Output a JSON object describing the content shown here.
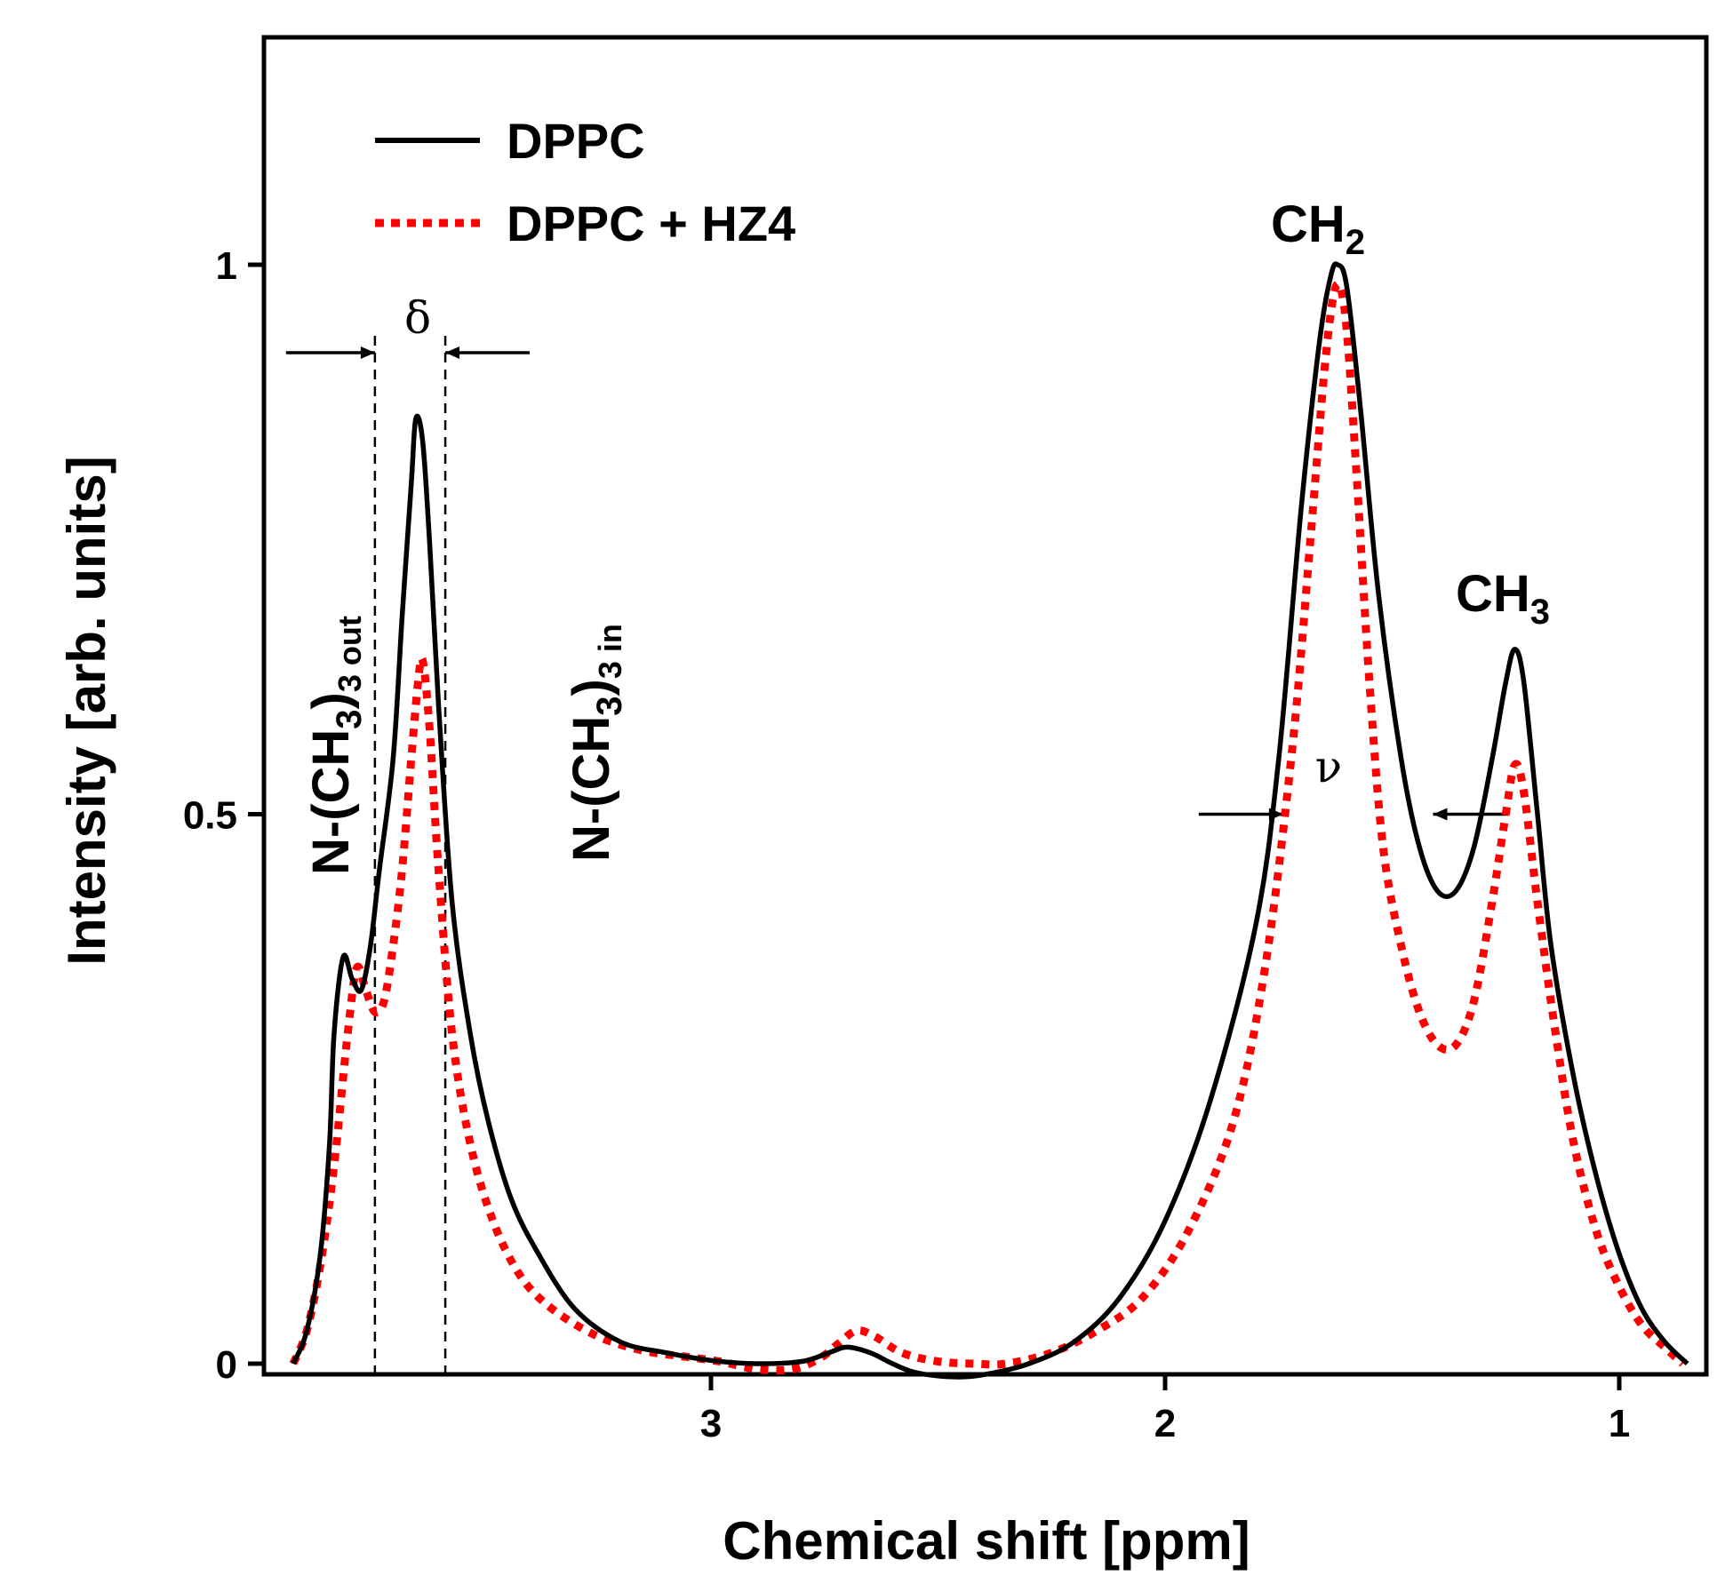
{
  "chart_data": {
    "type": "line",
    "xlabel": "Chemical shift [ppm]",
    "ylabel": "Intensity [arb. units]",
    "xlim": [
      4.0,
      0.8
    ],
    "ylim": [
      -0.03,
      1.2
    ],
    "x_ticks": [
      3,
      2,
      1
    ],
    "x_tick_labels": [
      "3",
      "2",
      "1"
    ],
    "y_ticks": [
      0,
      0.5,
      1
    ],
    "y_tick_labels": [
      "0",
      "0.5",
      "1"
    ],
    "legend_position": "top-left",
    "series": [
      {
        "name": "DPPC",
        "style": "solid",
        "color": "#000000",
        "points": [
          [
            3.92,
            0.0
          ],
          [
            3.89,
            0.03
          ],
          [
            3.86,
            0.1
          ],
          [
            3.84,
            0.2
          ],
          [
            3.83,
            0.3
          ],
          [
            3.81,
            0.37
          ],
          [
            3.79,
            0.35
          ],
          [
            3.77,
            0.34
          ],
          [
            3.75,
            0.38
          ],
          [
            3.73,
            0.45
          ],
          [
            3.7,
            0.55
          ],
          [
            3.68,
            0.68
          ],
          [
            3.66,
            0.8
          ],
          [
            3.65,
            0.86
          ],
          [
            3.635,
            0.84
          ],
          [
            3.62,
            0.75
          ],
          [
            3.6,
            0.6
          ],
          [
            3.57,
            0.42
          ],
          [
            3.53,
            0.3
          ],
          [
            3.49,
            0.22
          ],
          [
            3.44,
            0.15
          ],
          [
            3.38,
            0.1
          ],
          [
            3.3,
            0.05
          ],
          [
            3.2,
            0.02
          ],
          [
            3.1,
            0.01
          ],
          [
            3.0,
            0.003
          ],
          [
            2.9,
            0.0
          ],
          [
            2.8,
            0.002
          ],
          [
            2.74,
            0.01
          ],
          [
            2.7,
            0.015
          ],
          [
            2.65,
            0.01
          ],
          [
            2.6,
            0.0
          ],
          [
            2.55,
            -0.008
          ],
          [
            2.47,
            -0.012
          ],
          [
            2.4,
            -0.01
          ],
          [
            2.3,
            0.0
          ],
          [
            2.2,
            0.02
          ],
          [
            2.1,
            0.06
          ],
          [
            2.0,
            0.13
          ],
          [
            1.9,
            0.24
          ],
          [
            1.8,
            0.4
          ],
          [
            1.75,
            0.55
          ],
          [
            1.7,
            0.78
          ],
          [
            1.66,
            0.93
          ],
          [
            1.635,
            0.99
          ],
          [
            1.62,
            1.0
          ],
          [
            1.6,
            0.98
          ],
          [
            1.57,
            0.87
          ],
          [
            1.53,
            0.7
          ],
          [
            1.48,
            0.55
          ],
          [
            1.44,
            0.47
          ],
          [
            1.4,
            0.43
          ],
          [
            1.36,
            0.43
          ],
          [
            1.32,
            0.47
          ],
          [
            1.28,
            0.55
          ],
          [
            1.25,
            0.62
          ],
          [
            1.23,
            0.65
          ],
          [
            1.21,
            0.62
          ],
          [
            1.18,
            0.5
          ],
          [
            1.15,
            0.38
          ],
          [
            1.1,
            0.26
          ],
          [
            1.05,
            0.17
          ],
          [
            1.0,
            0.1
          ],
          [
            0.95,
            0.05
          ],
          [
            0.9,
            0.02
          ],
          [
            0.85,
            0.0
          ]
        ]
      },
      {
        "name": "DPPC + HZ4",
        "style": "dotted",
        "color": "#ff0000",
        "points": [
          [
            3.92,
            0.0
          ],
          [
            3.89,
            0.03
          ],
          [
            3.86,
            0.09
          ],
          [
            3.83,
            0.18
          ],
          [
            3.8,
            0.3
          ],
          [
            3.78,
            0.36
          ],
          [
            3.76,
            0.34
          ],
          [
            3.74,
            0.32
          ],
          [
            3.72,
            0.33
          ],
          [
            3.7,
            0.38
          ],
          [
            3.68,
            0.45
          ],
          [
            3.66,
            0.55
          ],
          [
            3.645,
            0.62
          ],
          [
            3.635,
            0.64
          ],
          [
            3.62,
            0.58
          ],
          [
            3.6,
            0.45
          ],
          [
            3.57,
            0.3
          ],
          [
            3.53,
            0.2
          ],
          [
            3.48,
            0.13
          ],
          [
            3.42,
            0.08
          ],
          [
            3.35,
            0.05
          ],
          [
            3.25,
            0.025
          ],
          [
            3.15,
            0.012
          ],
          [
            3.05,
            0.006
          ],
          [
            2.98,
            0.002
          ],
          [
            2.9,
            -0.005
          ],
          [
            2.82,
            -0.005
          ],
          [
            2.76,
            0.005
          ],
          [
            2.72,
            0.018
          ],
          [
            2.68,
            0.03
          ],
          [
            2.64,
            0.025
          ],
          [
            2.58,
            0.01
          ],
          [
            2.5,
            0.002
          ],
          [
            2.42,
            0.0
          ],
          [
            2.35,
            0.0
          ],
          [
            2.25,
            0.01
          ],
          [
            2.15,
            0.03
          ],
          [
            2.05,
            0.06
          ],
          [
            1.95,
            0.12
          ],
          [
            1.85,
            0.22
          ],
          [
            1.78,
            0.36
          ],
          [
            1.72,
            0.56
          ],
          [
            1.68,
            0.75
          ],
          [
            1.65,
            0.9
          ],
          [
            1.63,
            0.97
          ],
          [
            1.615,
            0.98
          ],
          [
            1.6,
            0.94
          ],
          [
            1.58,
            0.82
          ],
          [
            1.55,
            0.62
          ],
          [
            1.52,
            0.47
          ],
          [
            1.48,
            0.38
          ],
          [
            1.44,
            0.32
          ],
          [
            1.4,
            0.29
          ],
          [
            1.36,
            0.29
          ],
          [
            1.32,
            0.33
          ],
          [
            1.28,
            0.42
          ],
          [
            1.25,
            0.5
          ],
          [
            1.23,
            0.545
          ],
          [
            1.21,
            0.52
          ],
          [
            1.18,
            0.42
          ],
          [
            1.14,
            0.3
          ],
          [
            1.1,
            0.2
          ],
          [
            1.05,
            0.12
          ],
          [
            1.0,
            0.07
          ],
          [
            0.95,
            0.035
          ],
          [
            0.9,
            0.015
          ],
          [
            0.86,
            0.0
          ]
        ]
      }
    ],
    "annotations": {
      "delta": {
        "symbol": "δ",
        "x_left": 3.74,
        "x_right": 3.585,
        "y": 0.92
      },
      "nu": {
        "symbol": "ν",
        "x_left": 1.74,
        "x_right": 1.41,
        "y": 0.5
      },
      "peaks": {
        "ch2": {
          "main": "CH",
          "sub": "2",
          "x": 1.62
        },
        "ch3": {
          "main": "CH",
          "sub": "3",
          "x": 1.23
        },
        "nout": {
          "main": "N-(CH",
          "sub": "3",
          "close": ")",
          "sub2": "3 out",
          "x": 3.77
        },
        "nin": {
          "main": "N-(CH",
          "sub": "3",
          "close": ")",
          "sub2": "3 in",
          "x": 3.45
        }
      }
    }
  }
}
